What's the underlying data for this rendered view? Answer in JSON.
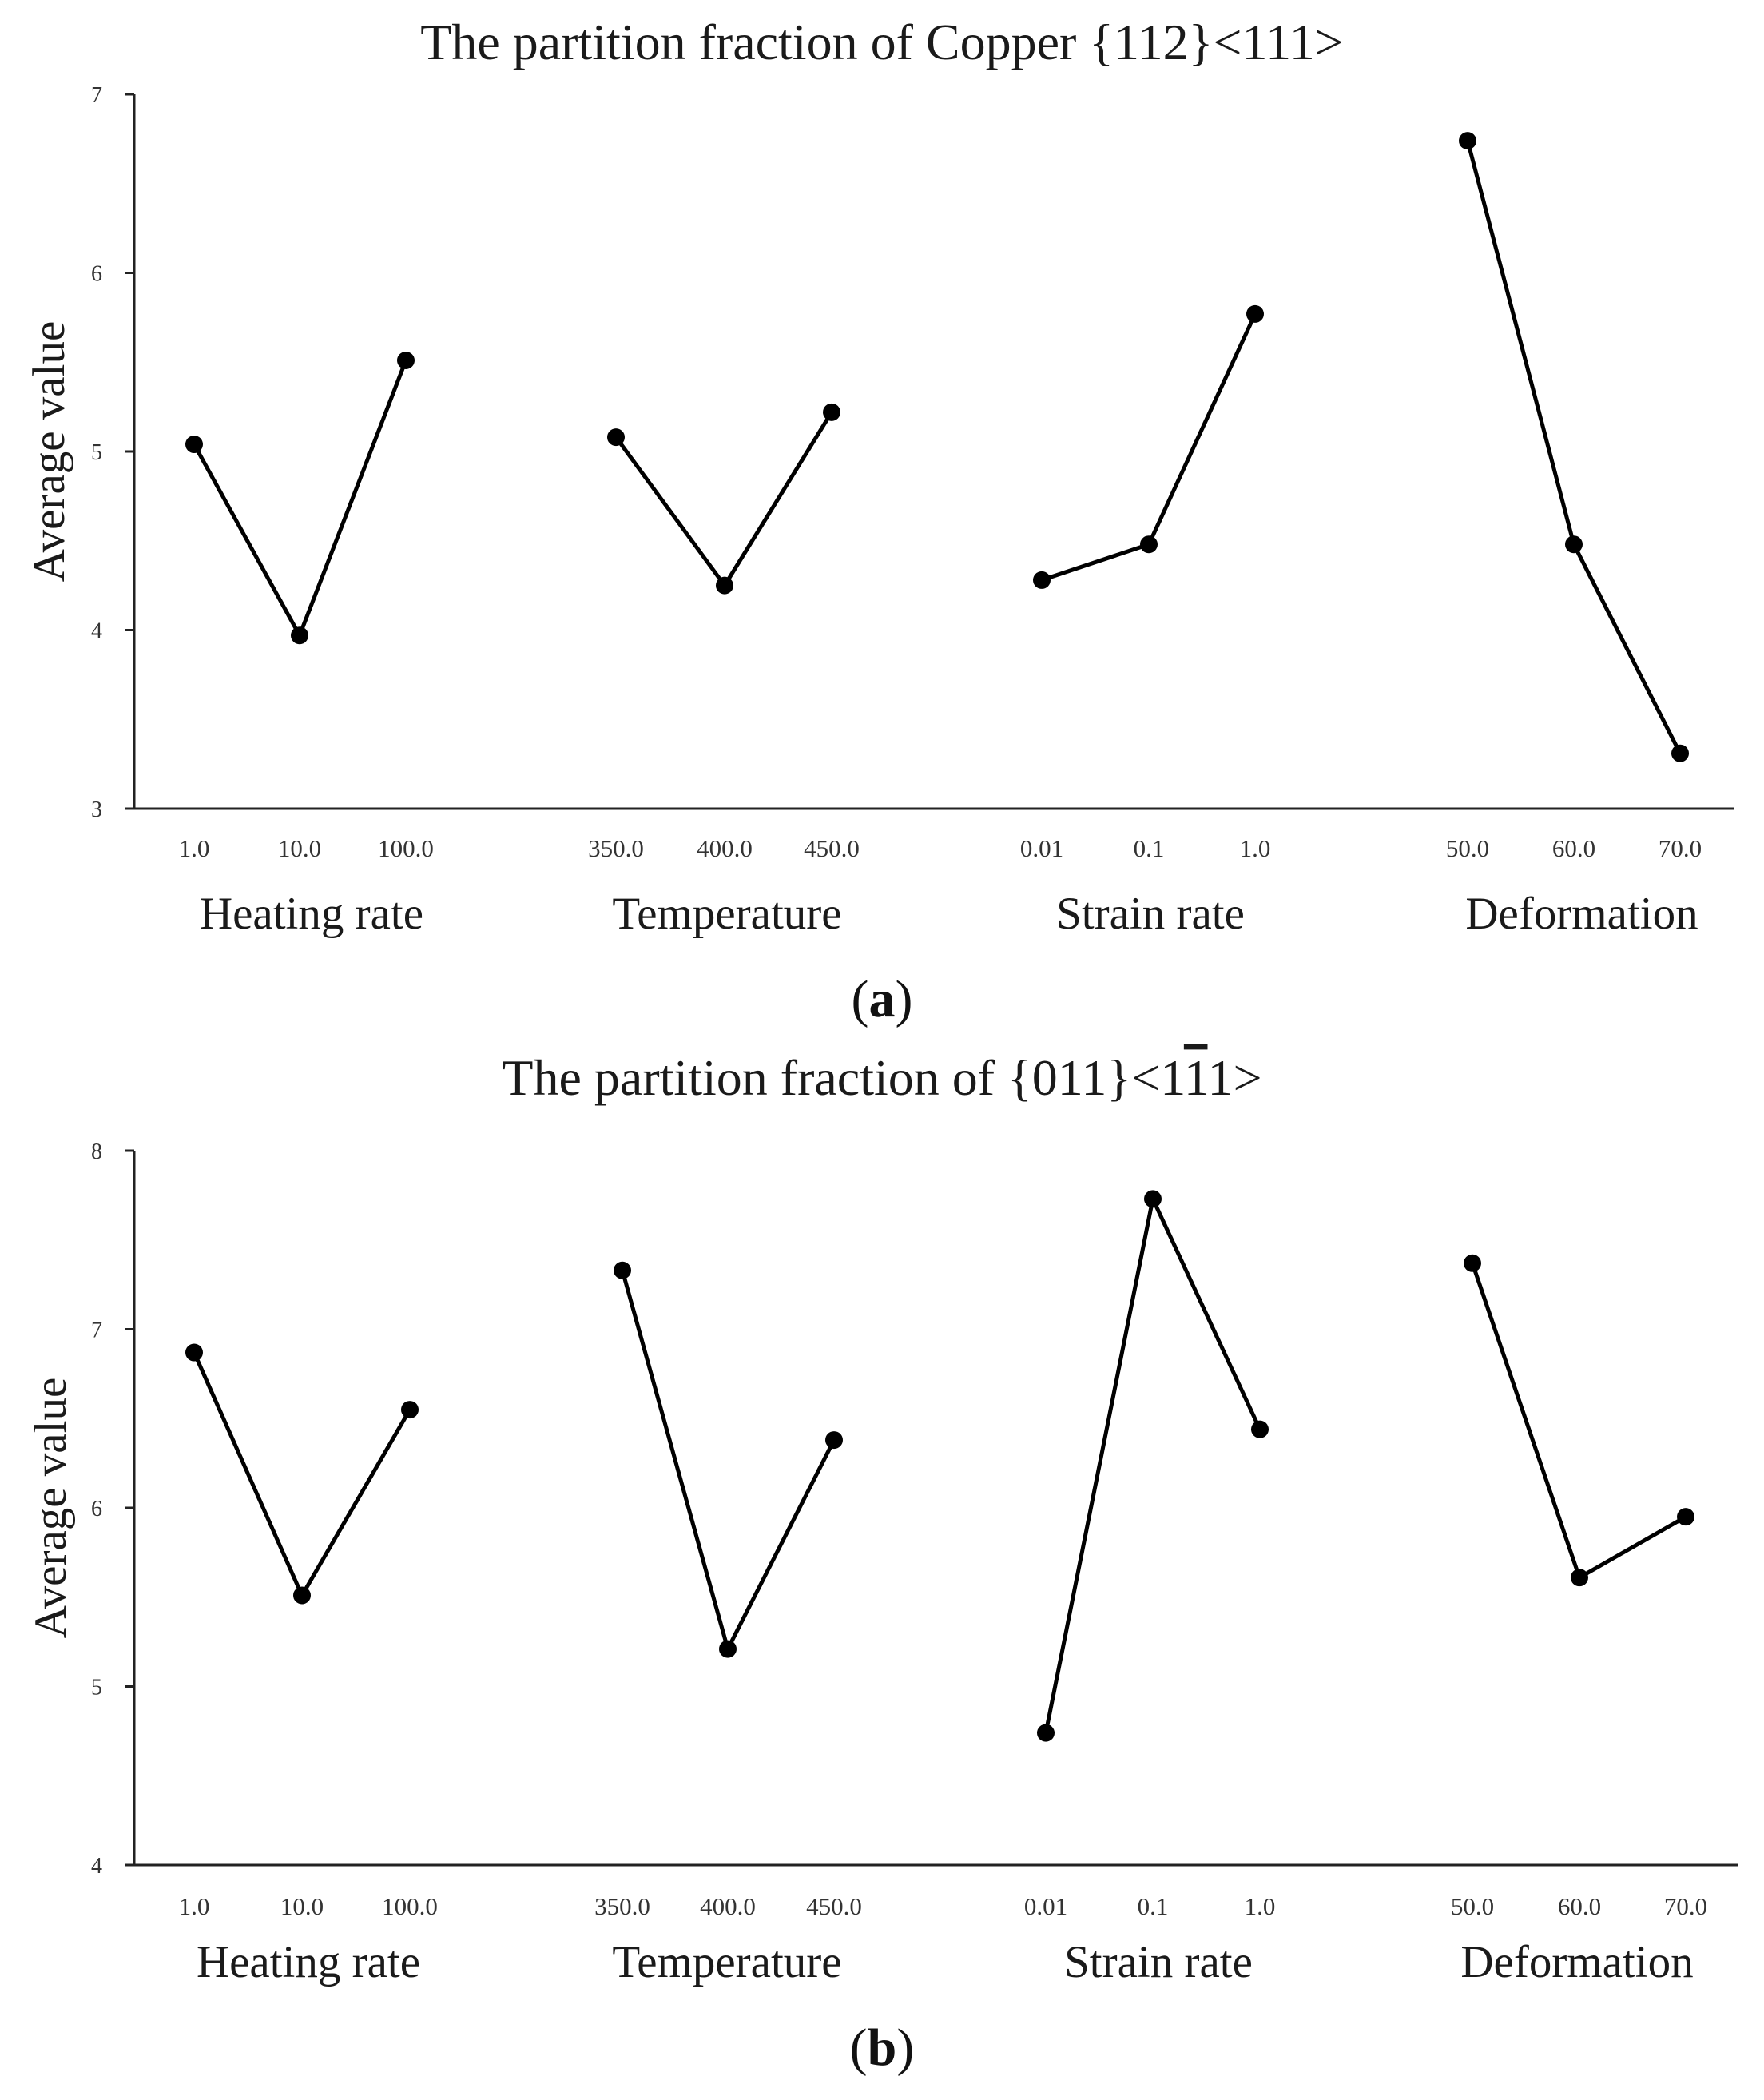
{
  "chart_data": [
    {
      "type": "line",
      "title_prefix": "The partition fraction of Copper {112}<111>",
      "title_overbar": "",
      "title_suffix": "",
      "panel_label": "a",
      "ylabel": "Average value",
      "ylim": [
        3,
        7
      ],
      "yticks": [
        "3",
        "4",
        "5",
        "6",
        "7"
      ],
      "groups": [
        {
          "name": "Heating rate",
          "x": [
            "1.0",
            "10.0",
            "100.0"
          ],
          "values": [
            5.04,
            3.97,
            5.51
          ]
        },
        {
          "name": "Temperature",
          "x": [
            "350.0",
            "400.0",
            "450.0"
          ],
          "values": [
            5.08,
            4.25,
            5.22
          ]
        },
        {
          "name": "Strain rate",
          "x": [
            "0.01",
            "0.1",
            "1.0"
          ],
          "values": [
            4.28,
            4.48,
            5.77
          ]
        },
        {
          "name": "Deformation",
          "x": [
            "50.0",
            "60.0",
            "70.0"
          ],
          "values": [
            6.74,
            4.48,
            3.31
          ]
        }
      ]
    },
    {
      "type": "line",
      "title_prefix": "The partition fraction of {011}<1",
      "title_overbar": "1",
      "title_suffix": "1>",
      "panel_label": "b",
      "ylabel": "Average value",
      "ylim": [
        4,
        8
      ],
      "yticks": [
        "4",
        "5",
        "6",
        "7",
        "8"
      ],
      "groups": [
        {
          "name": "Heating rate",
          "x": [
            "1.0",
            "10.0",
            "100.0"
          ],
          "values": [
            6.87,
            5.51,
            6.55
          ]
        },
        {
          "name": "Temperature",
          "x": [
            "350.0",
            "400.0",
            "450.0"
          ],
          "values": [
            7.33,
            5.21,
            6.38
          ]
        },
        {
          "name": "Strain rate",
          "x": [
            "0.01",
            "0.1",
            "1.0"
          ],
          "values": [
            4.74,
            7.73,
            6.44
          ]
        },
        {
          "name": "Deformation",
          "x": [
            "50.0",
            "60.0",
            "70.0"
          ],
          "values": [
            7.37,
            5.61,
            5.95
          ]
        }
      ]
    }
  ]
}
